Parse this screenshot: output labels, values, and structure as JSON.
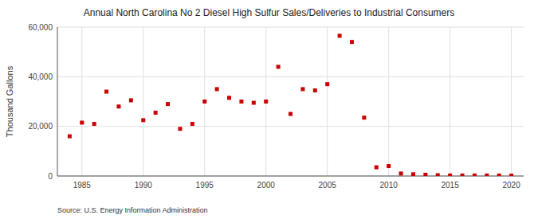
{
  "chart_data": {
    "type": "scatter",
    "title": "Annual North Carolina No 2 Diesel High Sulfur Sales/Deliveries to Industrial Consumers",
    "ylabel": "Thousand Gallons",
    "annotations": [
      "Source: U.S. Energy Information Administration"
    ],
    "color": "#cc0000",
    "marker": "square",
    "grid": true,
    "xlim": [
      1983,
      2021
    ],
    "ylim": [
      0,
      60000
    ],
    "xticks": [
      1985,
      1990,
      1995,
      2000,
      2005,
      2010,
      2015,
      2020
    ],
    "yticks": [
      0,
      {
        "value": 20000,
        "label": "20,000"
      },
      {
        "value": 40000,
        "label": "40,000"
      },
      {
        "value": 60000,
        "label": "60,000"
      }
    ],
    "x": [
      1984,
      1985,
      1986,
      1987,
      1988,
      1989,
      1990,
      1991,
      1992,
      1993,
      1994,
      1995,
      1996,
      1997,
      1998,
      1999,
      2000,
      2001,
      2002,
      2003,
      2004,
      2005,
      2006,
      2007,
      2008,
      2009,
      2010,
      2011,
      2012,
      2013,
      2014,
      2015,
      2016,
      2017,
      2018,
      2019,
      2020
    ],
    "values": [
      16000,
      21500,
      21000,
      34000,
      28000,
      30500,
      22500,
      25500,
      29000,
      19000,
      21000,
      30000,
      35000,
      31500,
      30000,
      29500,
      30000,
      44000,
      25000,
      35000,
      34500,
      37000,
      56500,
      54000,
      23500,
      3500,
      4000,
      1000,
      700,
      500,
      300,
      200,
      200,
      200,
      200,
      200,
      150
    ]
  }
}
